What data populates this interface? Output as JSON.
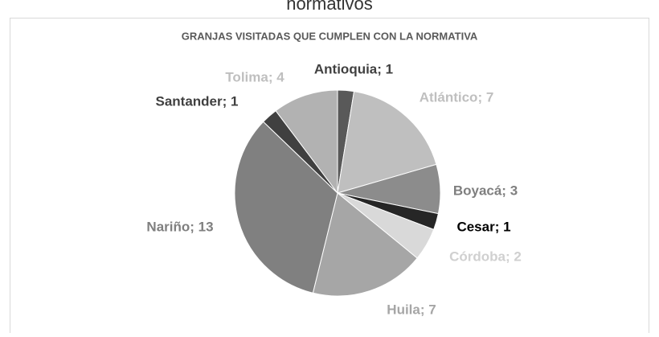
{
  "header": "normativos",
  "chart_data": {
    "type": "pie",
    "title": "GRANJAS VISITADAS QUE CUMPLEN CON LA NORMATIVA",
    "labels": [
      "Antioquia; 1",
      "Atlántico; 7",
      "Boyacá; 3",
      "Cesar; 1",
      "Córdoba; 2",
      "Huila; 7",
      "Nariño; 13",
      "Santander; 1",
      "Tolima; 4"
    ],
    "values": [
      1,
      7,
      3,
      1,
      2,
      7,
      13,
      1,
      4
    ],
    "colors": [
      "#595959",
      "#bfbfbf",
      "#8c8c8c",
      "#262626",
      "#d9d9d9",
      "#a6a6a6",
      "#808080",
      "#404040",
      "#b2b2b2"
    ],
    "label_colors": [
      "#404040",
      "#bfbfbf",
      "#7f7f7f",
      "#000000",
      "#d0d0d0",
      "#a6a6a6",
      "#7f7f7f",
      "#404040",
      "#bfbfbf"
    ]
  }
}
